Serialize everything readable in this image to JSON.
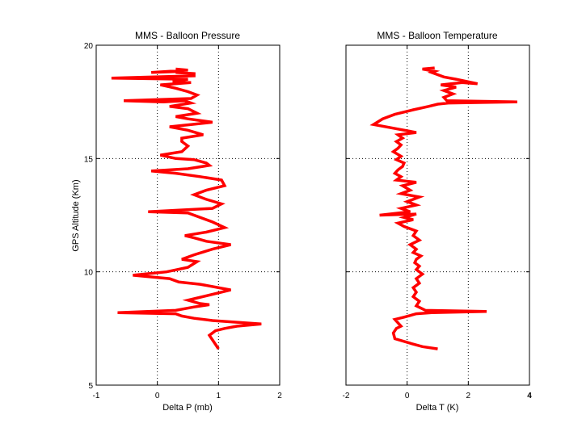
{
  "figure": {
    "background": "#ffffff",
    "line_color": "#ff0000",
    "axis_color": "#000000",
    "grid_color": "#000000"
  },
  "chart_data": [
    {
      "type": "line",
      "title": "MMS - Balloon Pressure",
      "xlabel": "Delta P (mb)",
      "ylabel": "GPS Altitude (Km)",
      "xlim": [
        -1,
        2
      ],
      "ylim": [
        5,
        20
      ],
      "xticks": [
        "-1",
        "0",
        "1",
        "2"
      ],
      "yticks": [
        "5",
        "10",
        "15",
        "20"
      ],
      "grid": true,
      "series": [
        {
          "color": "#ff0000",
          "x": [
            1.0,
            0.95,
            0.9,
            0.85,
            0.95,
            1.1,
            1.3,
            1.7,
            0.9,
            0.6,
            0.4,
            0.3,
            -0.65,
            0.3,
            0.6,
            0.85,
            0.7,
            0.5,
            1.2,
            0.7,
            0.35,
            0.2,
            -0.4,
            0.15,
            0.5,
            0.65,
            0.4,
            0.6,
            0.9,
            1.2,
            0.8,
            0.6,
            0.45,
            0.8,
            1.1,
            0.9,
            0.5,
            -0.15,
            0.9,
            1.05,
            0.8,
            0.6,
            0.8,
            1.1,
            1.05,
            0.7,
            0.3,
            -0.1,
            0.5,
            0.85,
            0.8,
            0.6,
            0.3,
            0.05,
            0.4,
            0.5,
            0.4,
            0.4,
            0.75,
            0.5,
            0.2,
            0.55,
            0.9,
            0.5,
            0.3,
            0.65,
            0.5,
            0.2,
            0.55,
            0.45,
            0.1,
            -0.55,
            0.55,
            0.65,
            0.5,
            0.3,
            0.05,
            0.55,
            0.25,
            0.5,
            -0.75,
            0.6,
            0.6,
            0.3,
            0.45,
            -0.1,
            0.5,
            0.3
          ],
          "y": [
            6.6,
            6.8,
            7.0,
            7.2,
            7.4,
            7.5,
            7.6,
            7.7,
            7.85,
            7.95,
            8.05,
            8.15,
            8.2,
            8.3,
            8.45,
            8.55,
            8.6,
            8.75,
            9.2,
            9.45,
            9.55,
            9.7,
            9.85,
            10.0,
            10.2,
            10.45,
            10.55,
            10.75,
            11.0,
            11.2,
            11.35,
            11.5,
            11.6,
            11.75,
            11.95,
            12.2,
            12.6,
            12.65,
            12.8,
            13.0,
            13.2,
            13.4,
            13.6,
            13.8,
            14.05,
            14.2,
            14.35,
            14.45,
            14.55,
            14.7,
            14.8,
            14.95,
            15.0,
            15.15,
            15.3,
            15.55,
            15.75,
            15.9,
            16.05,
            16.25,
            16.4,
            16.5,
            16.6,
            16.75,
            16.85,
            17.0,
            17.2,
            17.3,
            17.45,
            17.55,
            17.5,
            17.55,
            17.65,
            17.8,
            17.95,
            18.1,
            18.25,
            18.35,
            18.4,
            18.5,
            18.55,
            18.65,
            18.75,
            18.8,
            18.85,
            18.8,
            18.9,
            18.95
          ]
        }
      ]
    },
    {
      "type": "line",
      "title": "MMS - Balloon Temperature",
      "xlabel": "Delta T (K)",
      "ylabel": "",
      "xlim": [
        -2,
        4
      ],
      "ylim": [
        5,
        20
      ],
      "xticks": [
        "-2",
        "0",
        "2",
        "4"
      ],
      "yticks": [],
      "grid": true,
      "series": [
        {
          "color": "#ff0000",
          "x": [
            1.0,
            0.5,
            0.1,
            -0.4,
            -0.45,
            -0.35,
            -0.2,
            -0.3,
            -0.4,
            -0.1,
            0.3,
            0.8,
            2.6,
            0.6,
            0.3,
            0.4,
            0.2,
            0.3,
            0.2,
            0.4,
            0.3,
            0.5,
            0.3,
            0.4,
            0.25,
            0.3,
            0.45,
            0.2,
            0.3,
            0.1,
            0.4,
            0.2,
            0.3,
            -0.1,
            -0.3,
            0.2,
            -0.1,
            0.3,
            -0.9,
            0.1,
            -0.2,
            0.3,
            0.0,
            0.4,
            -0.2,
            0.1,
            -0.15,
            0.3,
            -0.35,
            -0.2,
            -0.4,
            -0.3,
            -0.15,
            -0.1,
            -0.35,
            -0.2,
            -0.45,
            -0.3,
            -0.2,
            -0.35,
            -0.15,
            -0.3,
            0.3,
            -0.3,
            -1.1,
            -0.8,
            -0.4,
            0.2,
            0.7,
            1.0,
            1.35,
            3.6,
            1.3,
            1.2,
            1.5,
            1.2,
            1.6,
            1.1,
            1.8,
            2.3,
            1.6,
            1.2,
            1.0,
            0.8,
            0.9,
            0.7,
            0.5,
            0.9
          ],
          "y": [
            6.6,
            6.7,
            6.85,
            7.05,
            7.3,
            7.5,
            7.6,
            7.75,
            7.9,
            8.0,
            8.15,
            8.2,
            8.25,
            8.3,
            8.5,
            8.7,
            8.9,
            9.1,
            9.3,
            9.5,
            9.7,
            9.9,
            10.1,
            10.25,
            10.4,
            10.55,
            10.7,
            10.85,
            11.0,
            11.2,
            11.4,
            11.6,
            11.8,
            12.0,
            12.15,
            12.3,
            12.4,
            12.55,
            12.5,
            12.65,
            12.8,
            12.95,
            13.1,
            13.3,
            13.45,
            13.6,
            13.8,
            13.95,
            14.05,
            14.2,
            14.35,
            14.5,
            14.65,
            14.8,
            14.95,
            15.1,
            15.3,
            15.45,
            15.6,
            15.75,
            15.9,
            16.05,
            16.15,
            16.3,
            16.5,
            16.75,
            16.95,
            17.15,
            17.3,
            17.4,
            17.45,
            17.5,
            17.55,
            17.7,
            17.85,
            18.0,
            18.15,
            18.25,
            18.35,
            18.3,
            18.5,
            18.6,
            18.7,
            18.8,
            18.85,
            18.9,
            18.95,
            19.0
          ]
        }
      ]
    }
  ]
}
